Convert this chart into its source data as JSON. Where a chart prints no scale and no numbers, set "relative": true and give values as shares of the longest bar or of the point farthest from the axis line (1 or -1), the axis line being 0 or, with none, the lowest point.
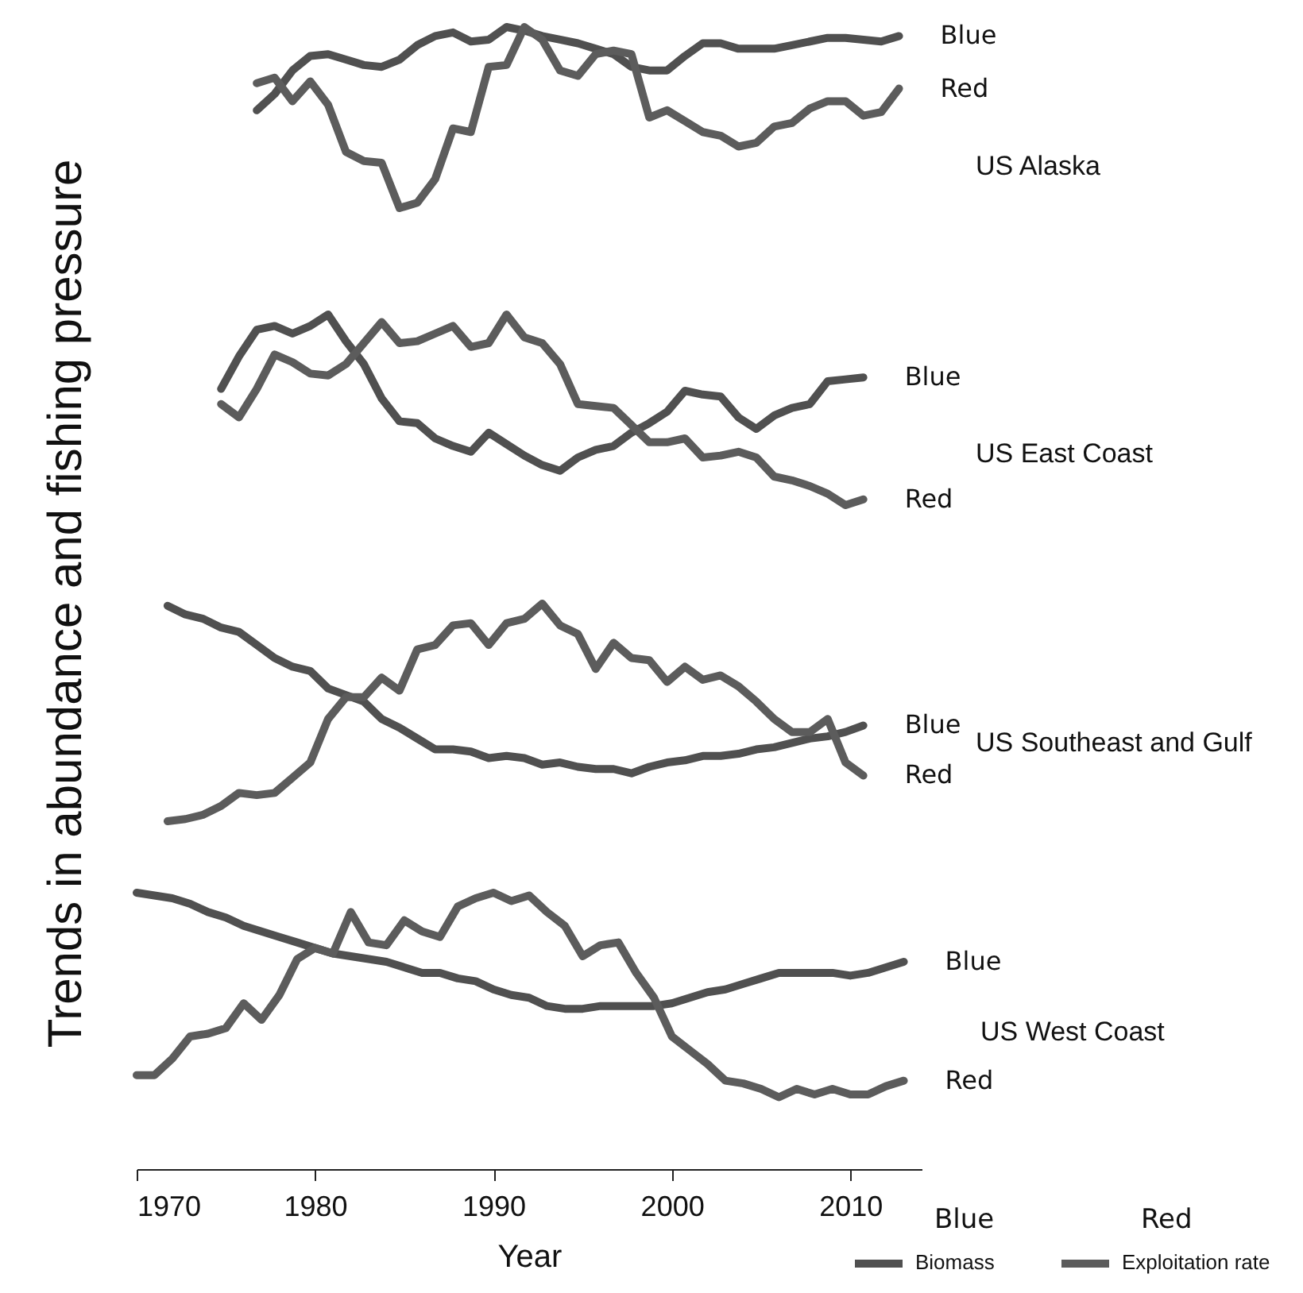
{
  "chart_data": [
    {
      "type": "line",
      "annotations": [
        "US Alaska"
      ],
      "ylabel": "Trends in abundance and fishing pressure",
      "relative": true,
      "tick_labels": false,
      "categories": [
        null,
        null,
        null,
        null,
        null,
        null,
        null,
        null,
        null,
        null,
        null,
        null,
        null,
        null,
        null,
        null,
        null,
        null,
        null,
        null,
        null,
        null,
        null,
        null,
        null,
        null,
        null,
        null,
        null,
        null,
        null,
        null,
        null,
        null,
        null,
        null,
        null,
        null,
        null,
        null,
        null,
        null,
        null,
        null,
        null
      ],
      "series": [
        {
          "name": "Blue",
          "color": "#505050",
          "values": [
            null,
            null,
            null,
            null,
            null,
            null,
            null,
            0.54,
            0.63,
            0.76,
            0.84,
            0.85,
            0.82,
            0.79,
            0.78,
            0.82,
            0.9,
            0.95,
            0.97,
            0.92,
            0.93,
            1.0,
            0.98,
            0.95,
            0.93,
            0.91,
            0.88,
            0.85,
            0.78,
            0.76,
            0.76,
            0.84,
            0.91,
            0.91,
            0.88,
            0.88,
            0.88,
            0.9,
            0.92,
            0.94,
            0.94,
            0.93,
            0.92,
            0.95,
            null
          ]
        },
        {
          "name": "Red",
          "color": "#5c5c5c",
          "values": [
            null,
            null,
            null,
            null,
            null,
            null,
            null,
            0.69,
            0.72,
            0.59,
            0.7,
            0.57,
            0.31,
            0.26,
            0.25,
            0.0,
            0.03,
            0.16,
            0.44,
            0.42,
            0.78,
            0.79,
            1.0,
            0.93,
            0.76,
            0.73,
            0.85,
            0.87,
            0.85,
            0.5,
            0.54,
            0.48,
            0.42,
            0.4,
            0.34,
            0.36,
            0.45,
            0.47,
            0.55,
            0.59,
            0.59,
            0.51,
            0.53,
            0.66,
            null
          ]
        }
      ]
    },
    {
      "type": "line",
      "annotations": [
        "US East Coast"
      ],
      "relative": true,
      "tick_labels": false,
      "categories": [
        null,
        null,
        null,
        null,
        null,
        null,
        null,
        null,
        null,
        null,
        null,
        null,
        null,
        null,
        null,
        null,
        null,
        null,
        null,
        null,
        null,
        null,
        null,
        null,
        null,
        null,
        null,
        null,
        null,
        null,
        null,
        null,
        null,
        null,
        null,
        null,
        null,
        null,
        null,
        null,
        null,
        null,
        null,
        null,
        null
      ],
      "series": [
        {
          "name": "Blue",
          "color": "#505050",
          "values": [
            null,
            null,
            null,
            null,
            null,
            0.61,
            0.78,
            0.92,
            0.94,
            0.9,
            0.94,
            1.0,
            0.86,
            0.74,
            0.56,
            0.44,
            0.43,
            0.35,
            0.31,
            0.28,
            0.38,
            0.32,
            0.26,
            0.21,
            0.18,
            0.25,
            0.29,
            0.31,
            0.38,
            0.43,
            0.49,
            0.6,
            0.58,
            0.57,
            0.46,
            0.4,
            0.47,
            0.51,
            0.53,
            0.65,
            0.66,
            0.67,
            null,
            null,
            null
          ]
        },
        {
          "name": "Red",
          "color": "#5c5c5c",
          "values": [
            null,
            null,
            null,
            null,
            null,
            0.53,
            0.46,
            0.61,
            0.79,
            0.75,
            0.69,
            0.68,
            0.74,
            0.85,
            0.96,
            0.85,
            0.86,
            0.9,
            0.94,
            0.83,
            0.85,
            1.0,
            0.88,
            0.85,
            0.74,
            0.53,
            0.52,
            0.51,
            0.42,
            0.33,
            0.33,
            0.35,
            0.25,
            0.26,
            0.28,
            0.25,
            0.15,
            0.13,
            0.1,
            0.06,
            0.0,
            0.03,
            null,
            null,
            null
          ]
        }
      ]
    },
    {
      "type": "line",
      "annotations": [
        "US Southeast and Gulf"
      ],
      "relative": true,
      "tick_labels": false,
      "categories": [
        null,
        null,
        null,
        null,
        null,
        null,
        null,
        null,
        null,
        null,
        null,
        null,
        null,
        null,
        null,
        null,
        null,
        null,
        null,
        null,
        null,
        null,
        null,
        null,
        null,
        null,
        null,
        null,
        null,
        null,
        null,
        null,
        null,
        null,
        null,
        null,
        null,
        null,
        null,
        null,
        null,
        null,
        null,
        null,
        null
      ],
      "series": [
        {
          "name": "Blue",
          "color": "#505050",
          "values": [
            null,
            null,
            0.99,
            0.95,
            0.93,
            0.89,
            0.87,
            0.81,
            0.75,
            0.71,
            0.69,
            0.61,
            0.58,
            0.55,
            0.47,
            0.43,
            0.38,
            0.33,
            0.33,
            0.32,
            0.29,
            0.3,
            0.29,
            0.26,
            0.27,
            0.25,
            0.24,
            0.24,
            0.22,
            0.25,
            0.27,
            0.28,
            0.3,
            0.3,
            0.31,
            0.33,
            0.34,
            0.36,
            0.38,
            0.39,
            0.41,
            0.44,
            null,
            null,
            null
          ]
        },
        {
          "name": "Red",
          "color": "#5c5c5c",
          "values": [
            null,
            null,
            0.0,
            0.01,
            0.03,
            0.07,
            0.13,
            0.12,
            0.13,
            0.2,
            0.27,
            0.47,
            0.57,
            0.57,
            0.66,
            0.6,
            0.79,
            0.81,
            0.9,
            0.91,
            0.81,
            0.91,
            0.93,
            1.0,
            0.9,
            0.86,
            0.7,
            0.82,
            0.75,
            0.74,
            0.64,
            0.71,
            0.65,
            0.67,
            0.62,
            0.55,
            0.47,
            0.41,
            0.41,
            0.47,
            0.27,
            0.21,
            null,
            null,
            null
          ]
        }
      ]
    },
    {
      "type": "line",
      "xlabel": "Year",
      "relative": true,
      "tick_labels": "x",
      "xlim": [
        1970,
        2014
      ],
      "xticks": [
        1970,
        1980,
        1990,
        2000,
        2010
      ],
      "annotations": [
        "US West Coast",
        "Blue",
        "Biomass",
        "Red",
        "Exploitation rate"
      ],
      "x": [
        1970,
        1971,
        1972,
        1973,
        1974,
        1975,
        1976,
        1977,
        1978,
        1979,
        1980,
        1981,
        1982,
        1983,
        1984,
        1985,
        1986,
        1987,
        1988,
        1989,
        1990,
        1991,
        1992,
        1993,
        1994,
        1995,
        1996,
        1997,
        1998,
        1999,
        2000,
        2001,
        2002,
        2003,
        2004,
        2005,
        2006,
        2007,
        2008,
        2009,
        2010,
        2011,
        2012,
        2013
      ],
      "series": [
        {
          "name": "Blue",
          "color": "#505050",
          "values": [
            1.0,
            0.99,
            0.98,
            0.96,
            0.93,
            0.91,
            0.88,
            0.86,
            0.84,
            0.82,
            0.8,
            0.78,
            0.77,
            0.76,
            0.75,
            0.73,
            0.71,
            0.71,
            0.69,
            0.68,
            0.65,
            0.63,
            0.62,
            0.59,
            0.58,
            0.58,
            0.59,
            0.59,
            0.59,
            0.59,
            0.6,
            0.62,
            0.64,
            0.65,
            0.67,
            0.69,
            0.71,
            0.71,
            0.71,
            0.71,
            0.7,
            0.71,
            0.73,
            0.75
          ]
        },
        {
          "name": "Red",
          "color": "#5c5c5c",
          "values": [
            0.34,
            0.34,
            0.4,
            0.48,
            0.49,
            0.51,
            0.6,
            0.54,
            0.63,
            0.76,
            0.8,
            0.78,
            0.93,
            0.82,
            0.81,
            0.9,
            0.86,
            0.84,
            0.95,
            0.98,
            1.0,
            0.97,
            0.99,
            0.93,
            0.88,
            0.77,
            0.81,
            0.82,
            0.71,
            0.62,
            0.48,
            0.43,
            0.38,
            0.32,
            0.31,
            0.29,
            0.26,
            0.29,
            0.27,
            0.29,
            0.27,
            0.27,
            0.3,
            0.32
          ]
        }
      ]
    }
  ]
}
